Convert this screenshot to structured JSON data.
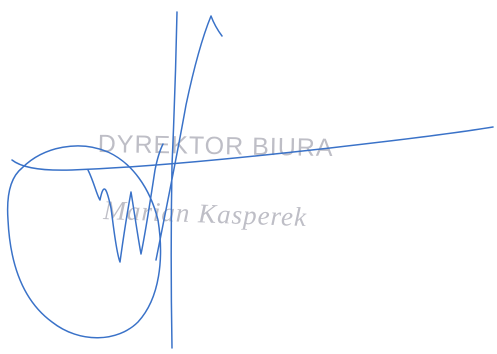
{
  "stamp": {
    "line_1": "DYREKTOR BIURA",
    "line_2": "Marian Kasperek",
    "color": "#b3b3bd"
  },
  "signature": {
    "ink_color": "#3a72c8"
  }
}
